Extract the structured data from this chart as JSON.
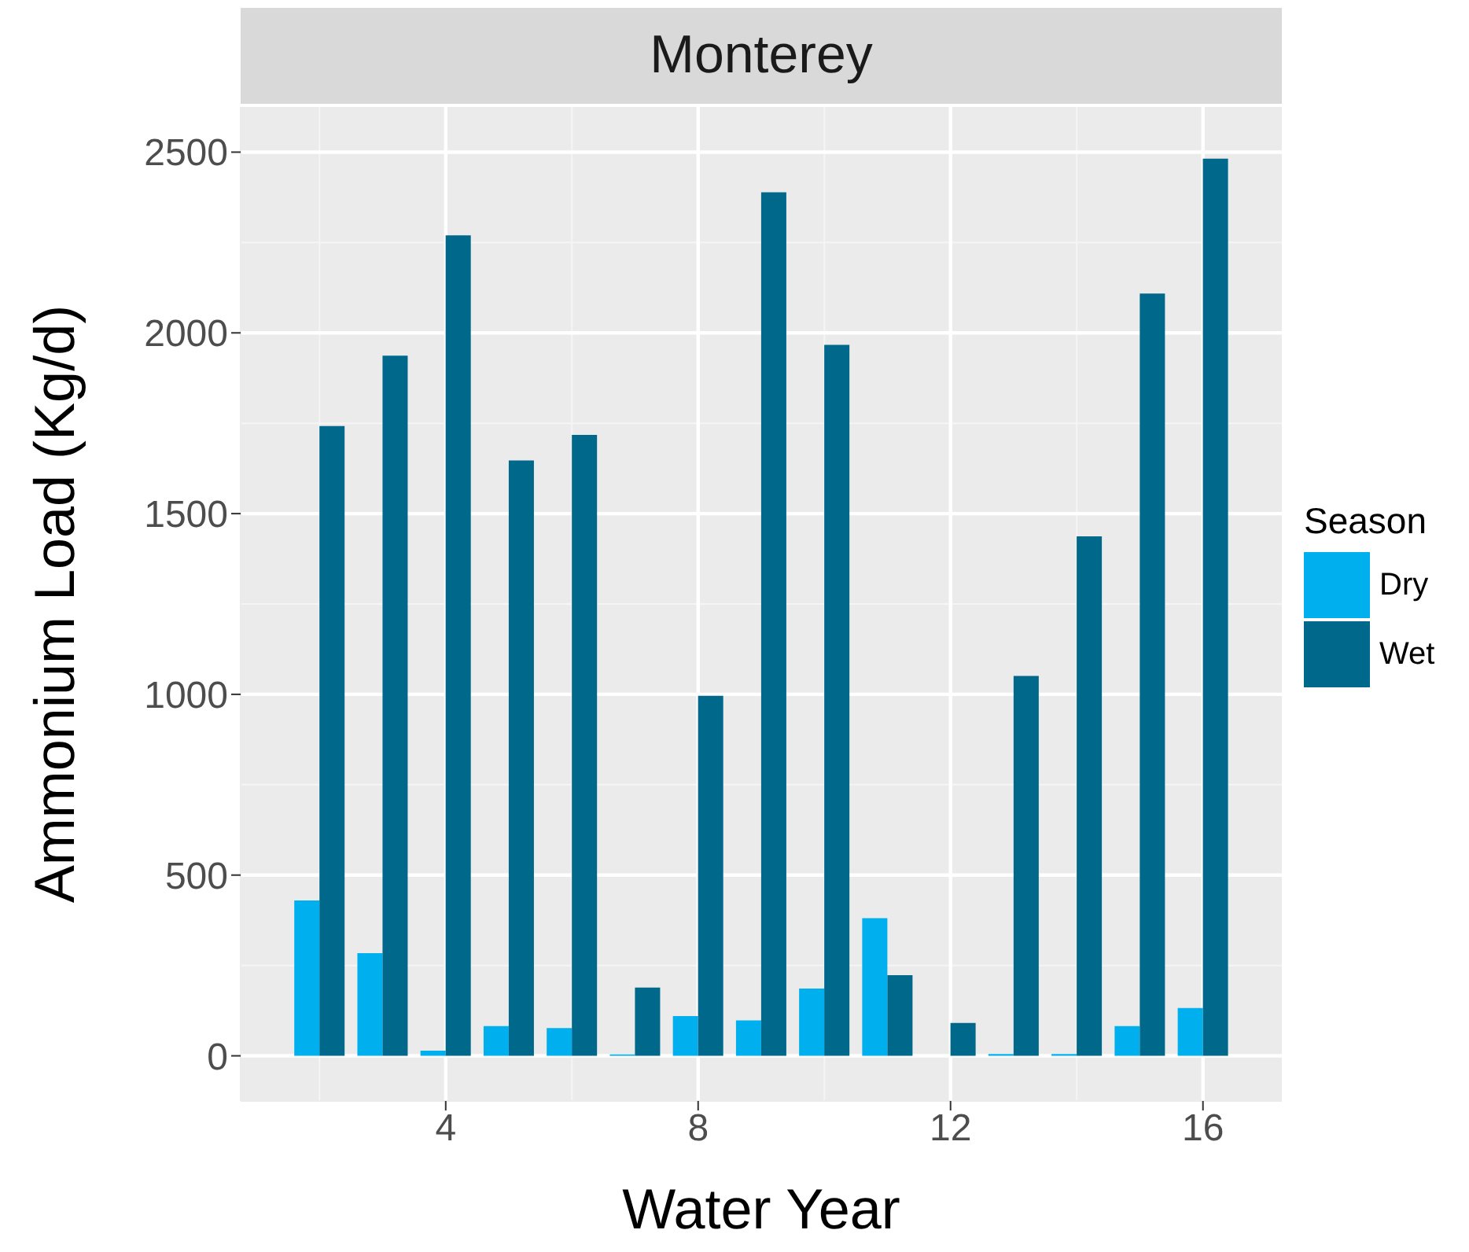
{
  "chart_data": {
    "type": "bar",
    "title": "Monterey",
    "xlabel": "Water Year",
    "ylabel": "Ammonium Load (Kg/d)",
    "legend_title": "Season",
    "x": [
      2,
      3,
      4,
      5,
      6,
      7,
      8,
      9,
      10,
      11,
      12,
      13,
      14,
      15,
      16
    ],
    "series": [
      {
        "name": "Dry",
        "color": "#00b0ee",
        "values": [
          430,
          284,
          14,
          82,
          77,
          4,
          110,
          98,
          186,
          381,
          null,
          5,
          5,
          82,
          132
        ]
      },
      {
        "name": "Wet",
        "color": "#00688b",
        "values": [
          1742,
          1937,
          2270,
          1647,
          1718,
          189,
          996,
          2389,
          1967,
          223,
          91,
          1051,
          1437,
          2109,
          2482
        ]
      }
    ],
    "xlim": [
      0.75,
      17.25
    ],
    "xticks": [
      4,
      8,
      12,
      16
    ],
    "ylim": [
      -125,
      2625
    ],
    "yticks": [
      0,
      500,
      1000,
      1500,
      2000,
      2500
    ],
    "grid": true,
    "legend": "right"
  }
}
